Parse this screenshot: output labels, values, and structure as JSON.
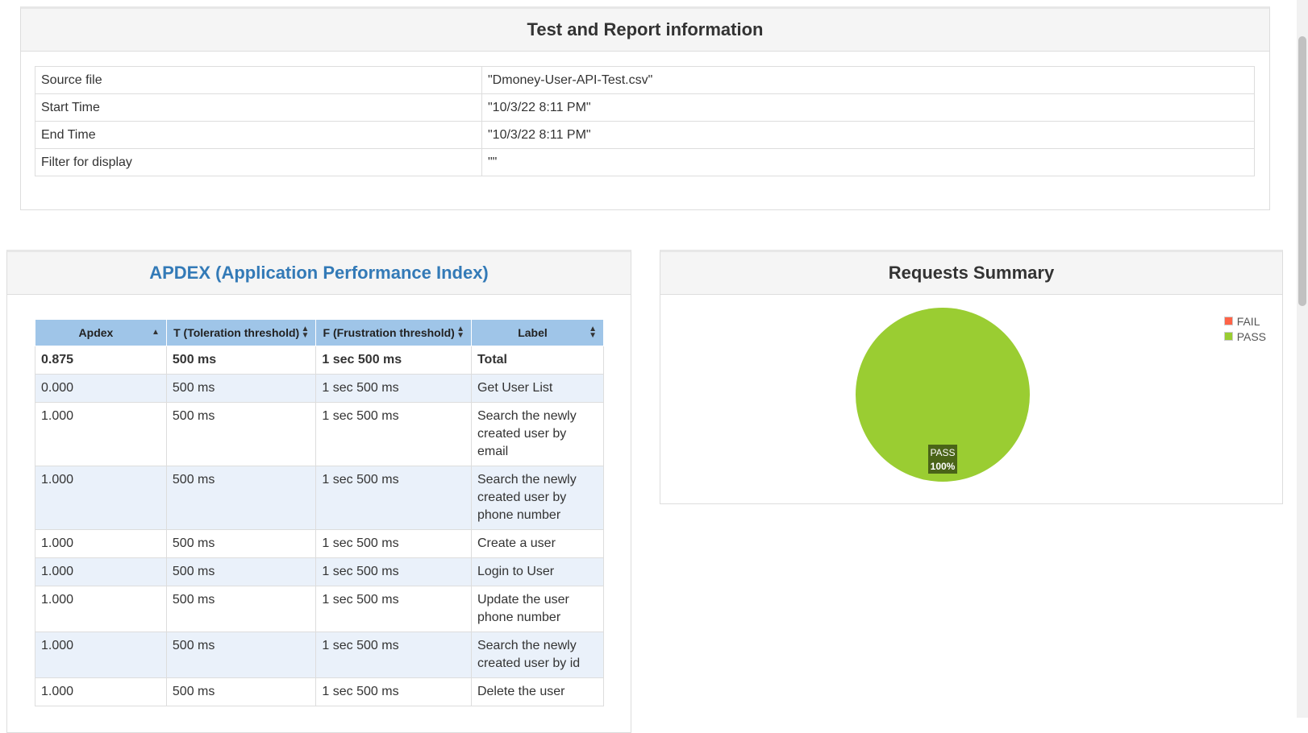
{
  "report_info": {
    "title": "Test and Report information",
    "rows": [
      {
        "key": "Source file",
        "value": "\"Dmoney-User-API-Test.csv\""
      },
      {
        "key": "Start Time",
        "value": "\"10/3/22 8:11 PM\""
      },
      {
        "key": "End Time",
        "value": "\"10/3/22 8:11 PM\""
      },
      {
        "key": "Filter for display",
        "value": "\"\""
      }
    ]
  },
  "apdex": {
    "title": "APDEX (Application Performance Index)",
    "headers": [
      "Apdex",
      "T (Toleration threshold)",
      "F (Frustration threshold)",
      "Label"
    ],
    "rows": [
      {
        "apdex": "0.875",
        "t": "500 ms",
        "f": "1 sec 500 ms",
        "label": "Total"
      },
      {
        "apdex": "0.000",
        "t": "500 ms",
        "f": "1 sec 500 ms",
        "label": "Get User List"
      },
      {
        "apdex": "1.000",
        "t": "500 ms",
        "f": "1 sec 500 ms",
        "label": "Search the newly created user by email"
      },
      {
        "apdex": "1.000",
        "t": "500 ms",
        "f": "1 sec 500 ms",
        "label": "Search the newly created user by phone number"
      },
      {
        "apdex": "1.000",
        "t": "500 ms",
        "f": "1 sec 500 ms",
        "label": "Create a user"
      },
      {
        "apdex": "1.000",
        "t": "500 ms",
        "f": "1 sec 500 ms",
        "label": "Login to User"
      },
      {
        "apdex": "1.000",
        "t": "500 ms",
        "f": "1 sec 500 ms",
        "label": "Update the user phone number"
      },
      {
        "apdex": "1.000",
        "t": "500 ms",
        "f": "1 sec 500 ms",
        "label": "Search the newly created user by id"
      },
      {
        "apdex": "1.000",
        "t": "500 ms",
        "f": "1 sec 500 ms",
        "label": "Delete the user"
      }
    ]
  },
  "requests_summary": {
    "title": "Requests Summary",
    "legend": [
      {
        "name": "FAIL",
        "color": "#ff6347"
      },
      {
        "name": "PASS",
        "color": "#9acd32"
      }
    ]
  },
  "chart_data": {
    "type": "pie",
    "categories": [
      "FAIL",
      "PASS"
    ],
    "values": [
      0,
      100
    ],
    "colors": [
      "#ff6347",
      "#9acd32"
    ],
    "slice_label": {
      "name": "PASS",
      "value": "100%"
    },
    "legend_position": "top-right"
  }
}
